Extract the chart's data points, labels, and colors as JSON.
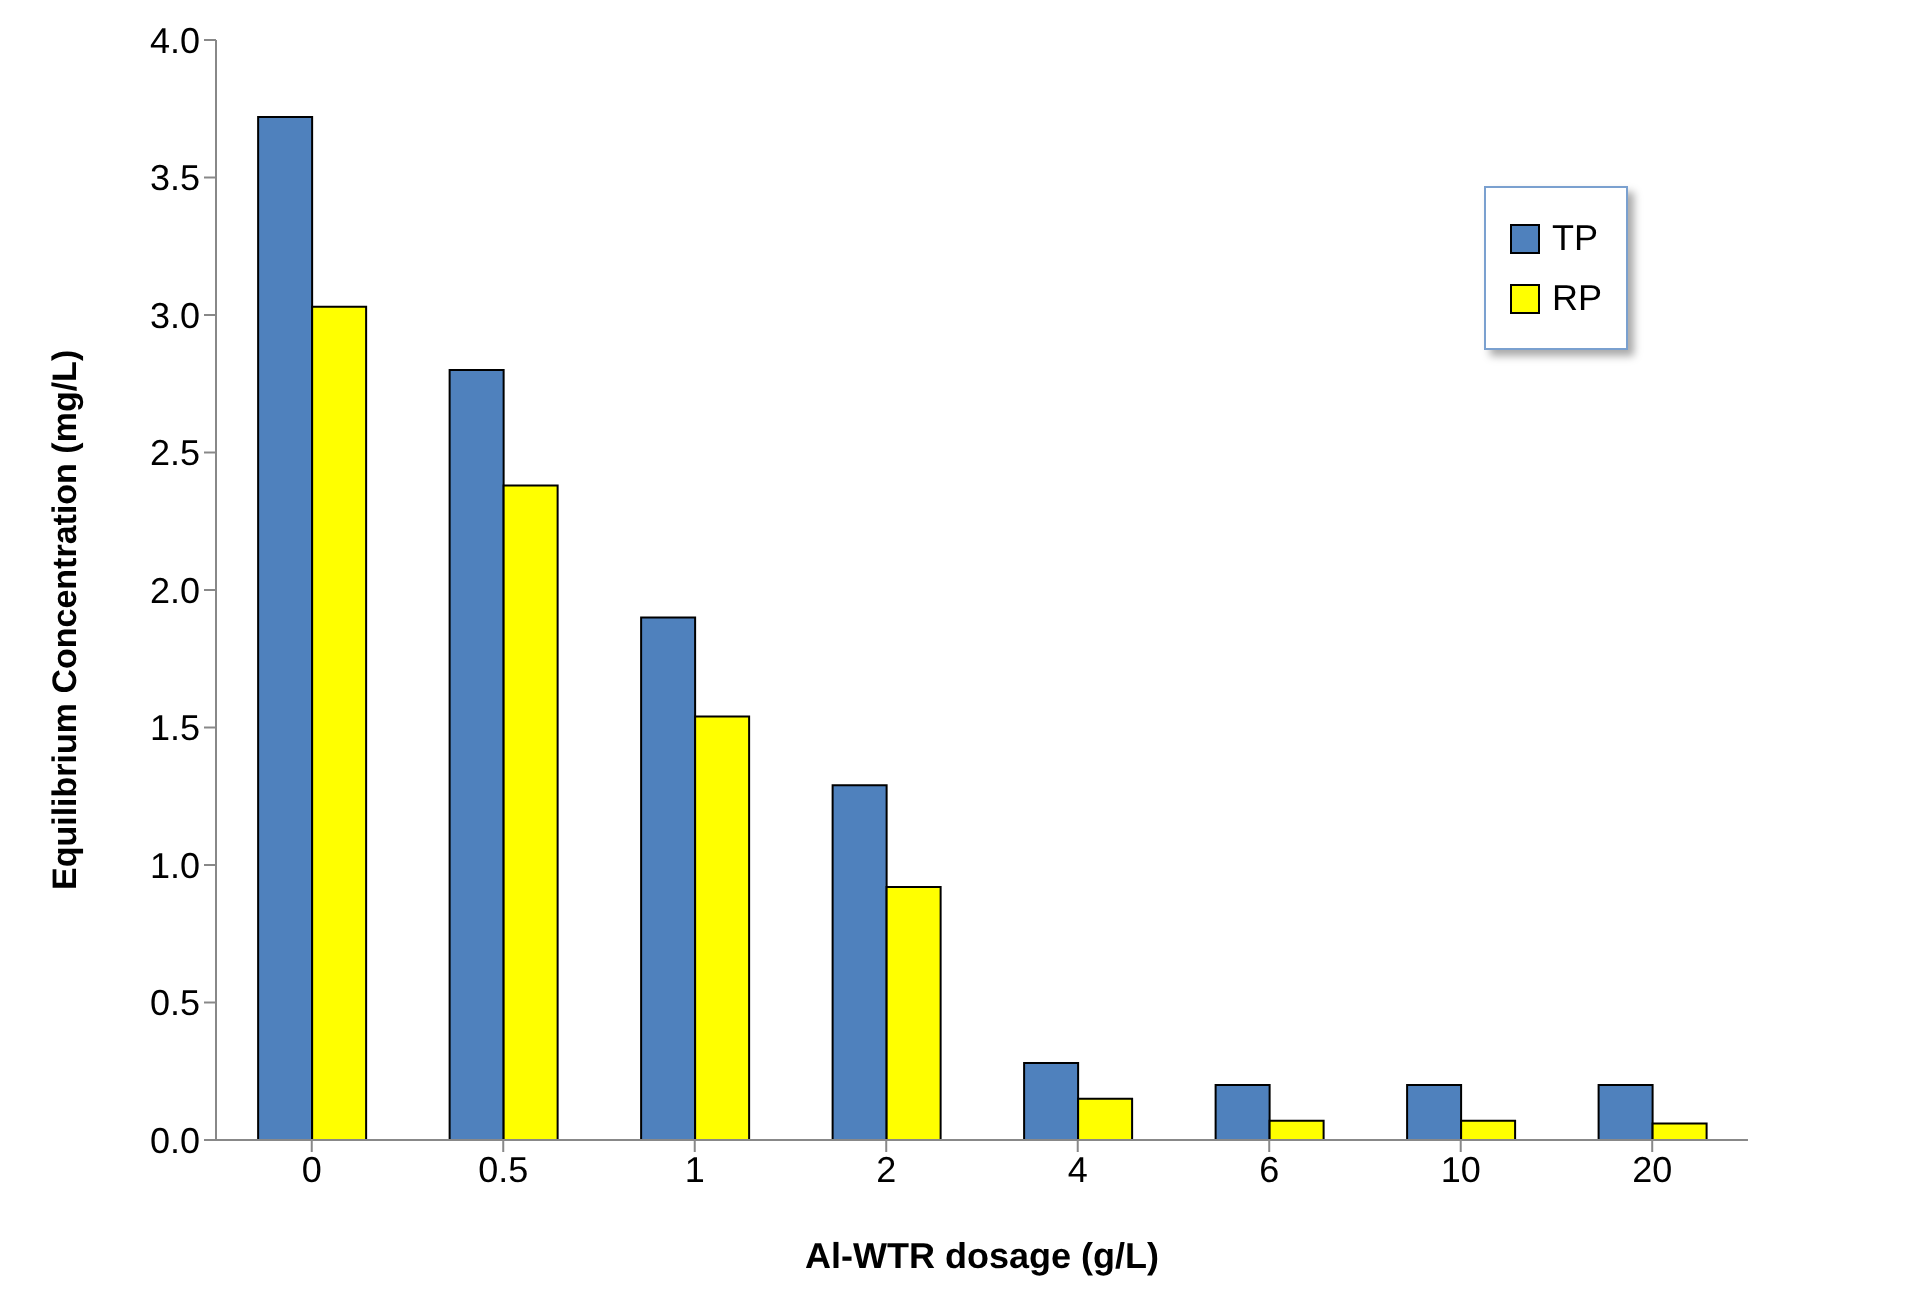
{
  "chart_data": {
    "type": "bar",
    "xlabel": "Al-WTR dosage (g/L)",
    "ylabel": "Equilibrium Concentration (mg/L)",
    "categories": [
      "0",
      "0.5",
      "1",
      "2",
      "4",
      "6",
      "10",
      "20"
    ],
    "series": [
      {
        "name": "TP",
        "color": "#4f81bd",
        "values": [
          3.72,
          2.8,
          1.9,
          1.29,
          0.28,
          0.2,
          0.2,
          0.2
        ]
      },
      {
        "name": "RP",
        "color": "#ffff00",
        "values": [
          3.03,
          2.38,
          1.54,
          0.92,
          0.15,
          0.07,
          0.07,
          0.06
        ]
      }
    ],
    "ylim": [
      0,
      4
    ],
    "yticks": [
      {
        "value": 0,
        "label": "0.0"
      },
      {
        "value": 0.5,
        "label": "0.5"
      },
      {
        "value": 1,
        "label": "1.0"
      },
      {
        "value": 1.5,
        "label": "1.5"
      },
      {
        "value": 2,
        "label": "2.0"
      },
      {
        "value": 2.5,
        "label": "2.5"
      },
      {
        "value": 3,
        "label": "3.0"
      },
      {
        "value": 3.5,
        "label": "3.5"
      },
      {
        "value": 4,
        "label": "4.0"
      }
    ],
    "grid": false,
    "legend": "top right"
  }
}
